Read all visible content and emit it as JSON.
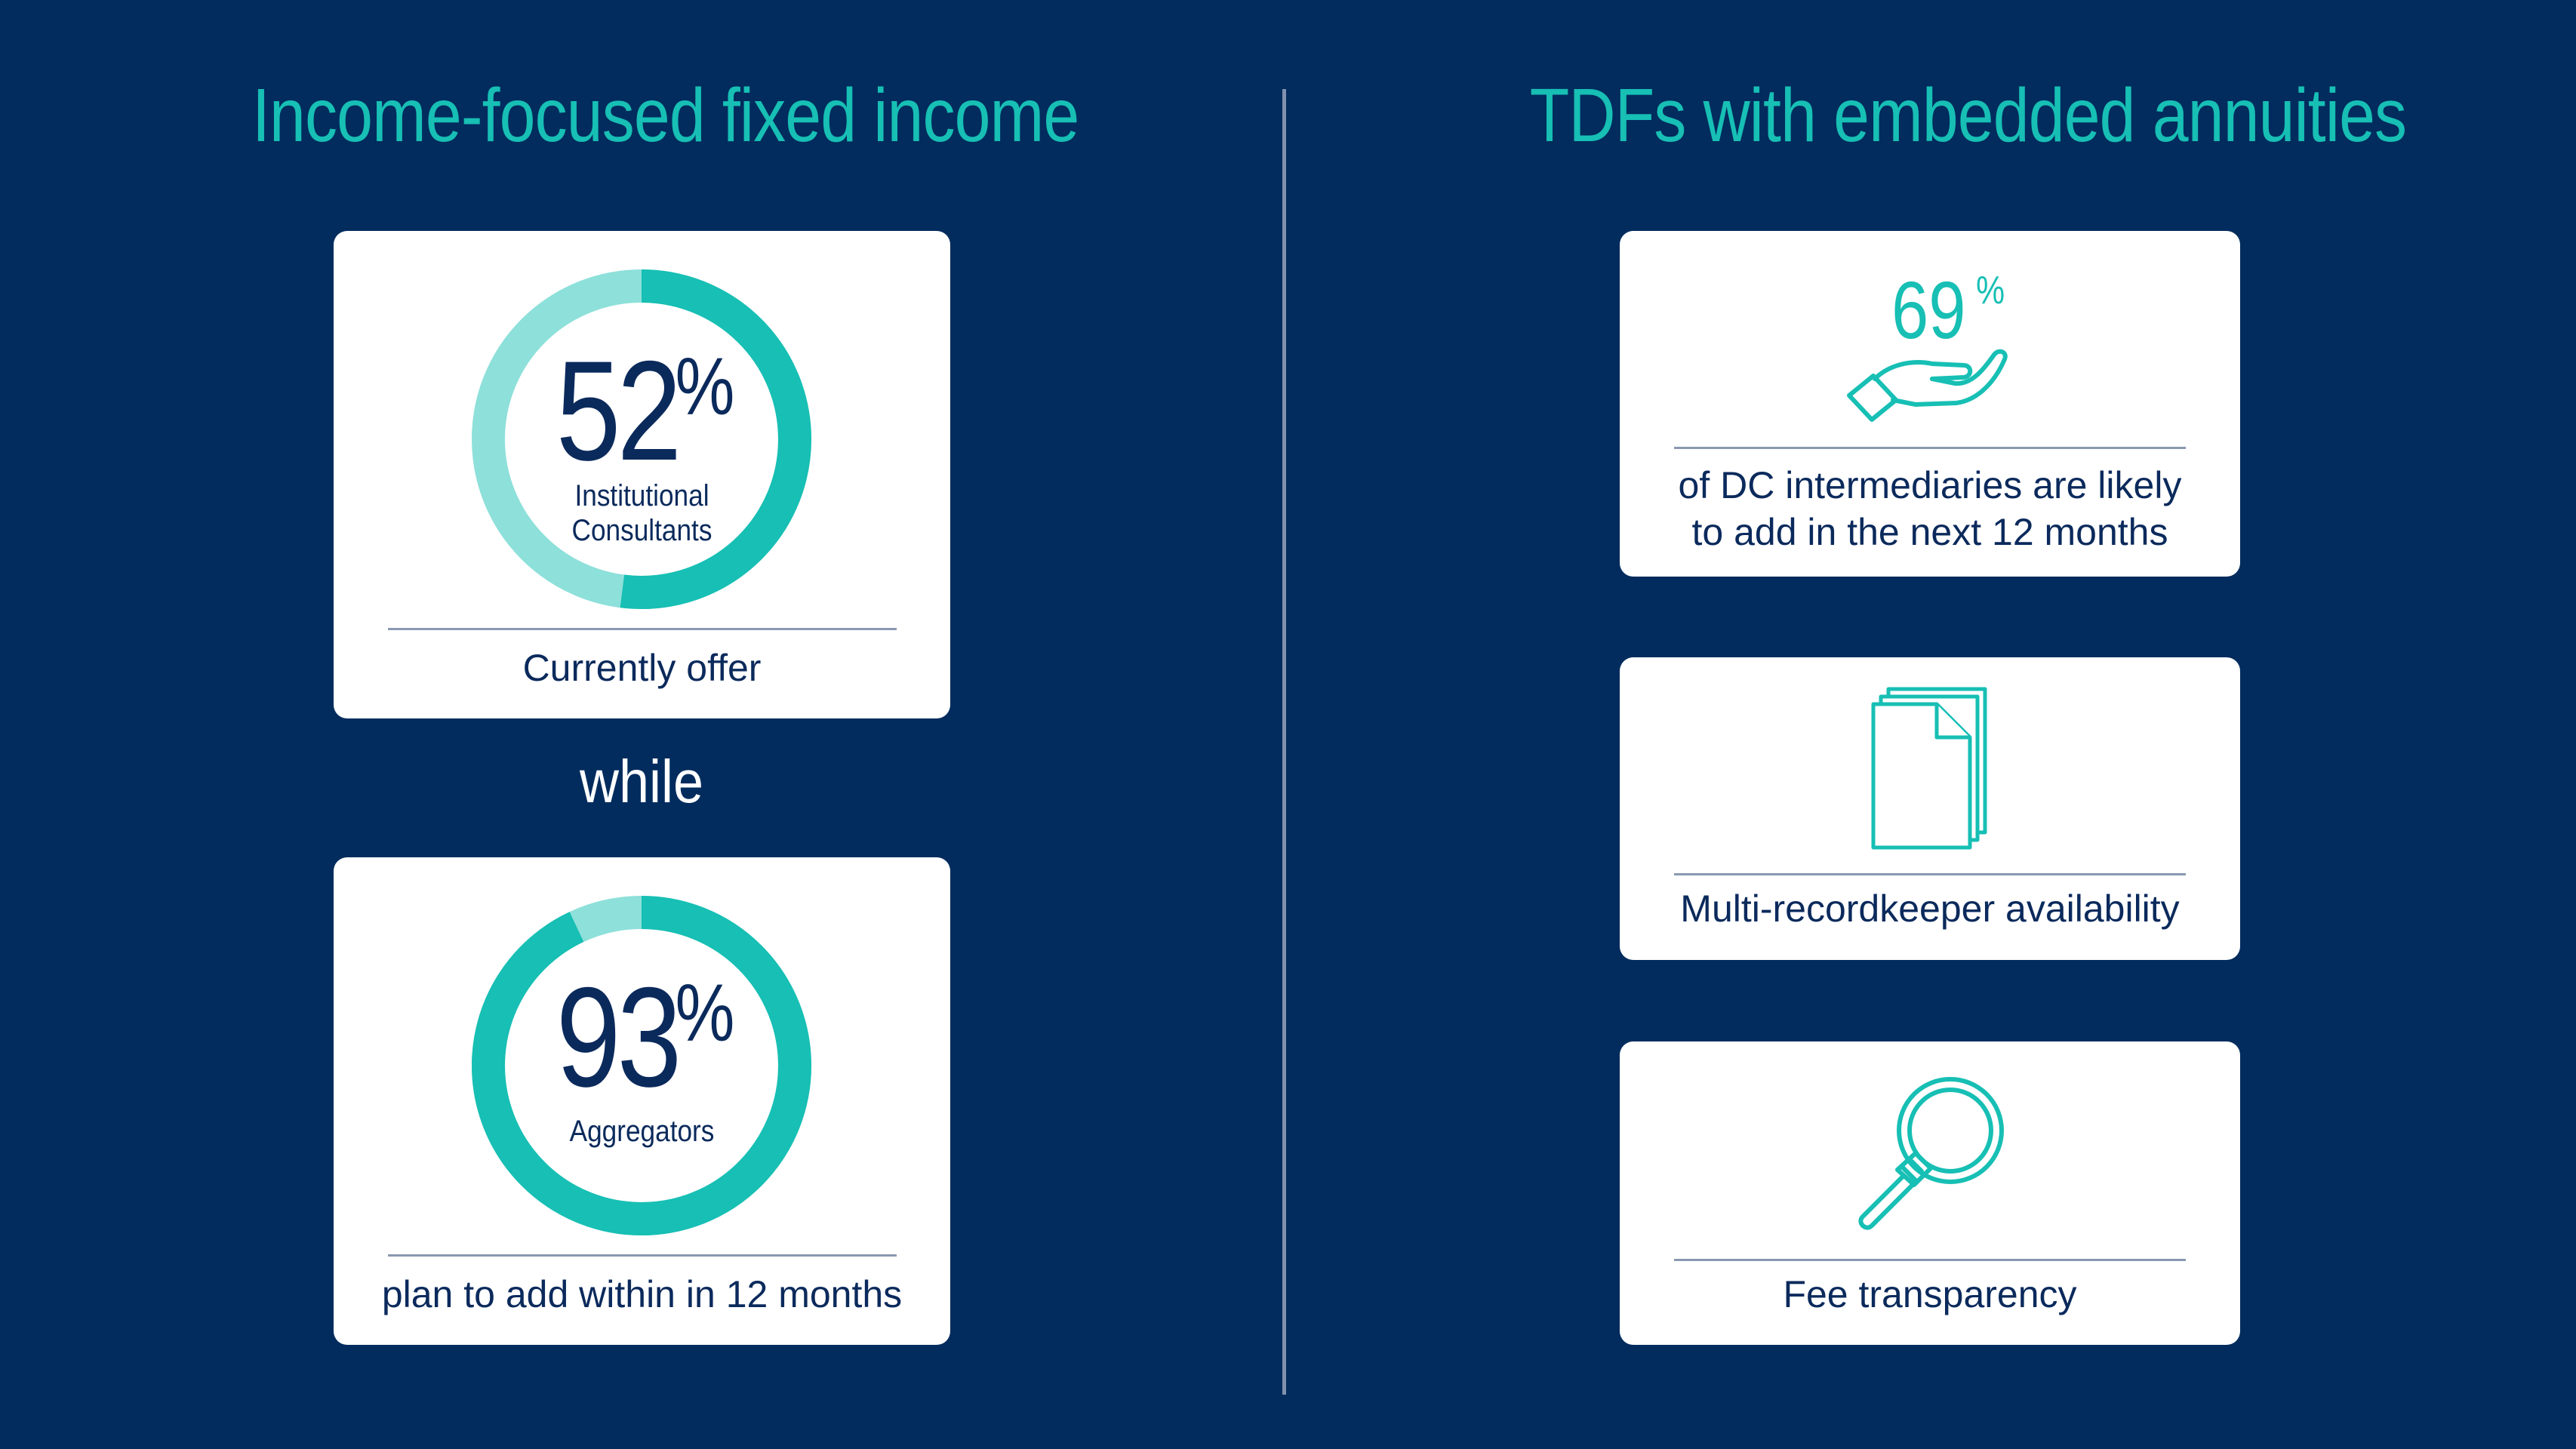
{
  "left_section": {
    "heading": "Income-focused fixed income",
    "card_top": {
      "value": "52",
      "unit": "%",
      "label_line1": "Institutional",
      "label_line2": "Consultants",
      "caption": "Currently offer",
      "fill_fraction": 0.52
    },
    "connector": "while",
    "card_bottom": {
      "value": "93",
      "unit": "%",
      "label_line1": "Aggregators",
      "caption": "plan to add within in 12 months",
      "fill_fraction": 0.93
    }
  },
  "right_section": {
    "heading": "TDFs with embedded annuities",
    "card_1": {
      "value": "69",
      "unit": "%",
      "icon": "hand-icon",
      "caption_line1": "of DC intermediaries are likely",
      "caption_line2": "to add in the next 12 months"
    },
    "card_2": {
      "icon": "documents-icon",
      "caption": "Multi-recordkeeper availability"
    },
    "card_3": {
      "icon": "magnifier-icon",
      "caption": "Fee transparency"
    }
  },
  "colors": {
    "background": "#022c5e",
    "accent": "#17bfb4",
    "accent_light": "#8ee0da",
    "text_dark": "#0b2a5c",
    "divider": "#8191ad"
  }
}
